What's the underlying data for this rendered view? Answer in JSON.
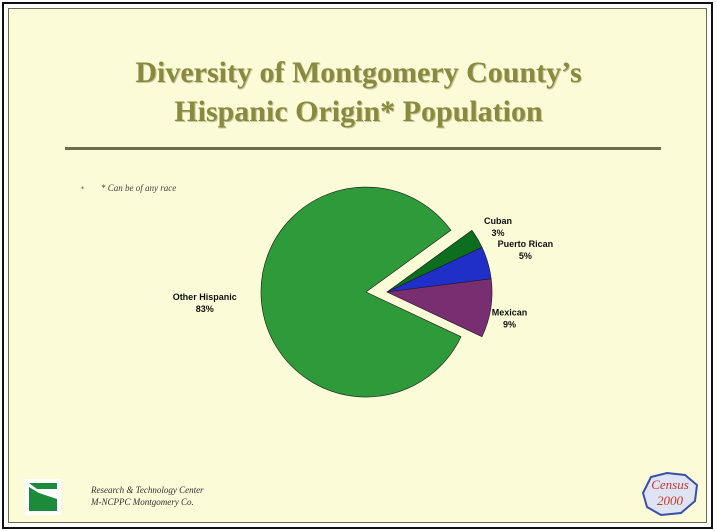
{
  "slide": {
    "title_line1": "Diversity of Montgomery County’s",
    "title_line2": "Hispanic Origin* Population",
    "note_bullet": "•",
    "note": "* Can be of any race",
    "footer_line1": "Research & Technology Center",
    "footer_line2": "M-NCPPC Montgomery Co.",
    "census_logo_text1": "Census",
    "census_logo_text2": "2000"
  },
  "colors": {
    "other_hispanic": "#2e9a3a",
    "cuban": "#0c6e1e",
    "puerto_rican": "#1f2fc8",
    "mexican": "#7a2e72",
    "title": "#8a8a3f"
  },
  "chart_data": {
    "type": "pie",
    "title": "",
    "slices": [
      {
        "name": "Cuban",
        "value": 3,
        "label": "Cuban",
        "pct_label": "3%"
      },
      {
        "name": "Puerto Rican",
        "value": 5,
        "label": "Puerto Rican",
        "pct_label": "5%"
      },
      {
        "name": "Mexican",
        "value": 9,
        "label": "Mexican",
        "pct_label": "9%"
      },
      {
        "name": "Other Hispanic",
        "value": 83,
        "label": "Other Hispanic",
        "pct_label": "83%"
      }
    ],
    "exploded": [
      "Cuban",
      "Puerto Rican",
      "Mexican"
    ],
    "legend": "none"
  }
}
